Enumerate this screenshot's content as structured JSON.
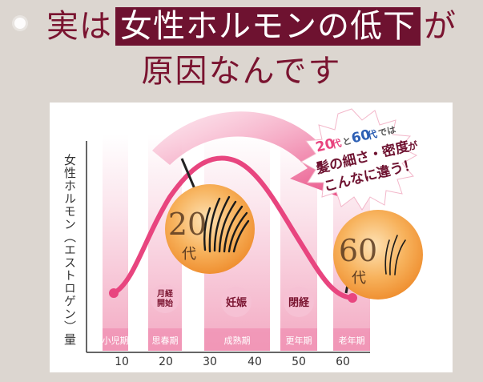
{
  "headline": {
    "line1_before": "実は",
    "line1_highlight": "女性ホルモンの低下",
    "line1_after": "が",
    "line2": "原因なんです"
  },
  "chart": {
    "ylabel": "女性ホルモン（エストロゲン）量",
    "periods": [
      "小児期",
      "思春期",
      "成熟期",
      "更年期",
      "老年期"
    ],
    "ticks": [
      "10",
      "20",
      "30",
      "40",
      "50",
      "60"
    ],
    "events": [
      "月経\n開始",
      "妊娠",
      "閉経"
    ],
    "burst": {
      "line1_a": "20",
      "line1_b": "代",
      "line1_c": "と",
      "line1_d": "60",
      "line1_e": "代",
      "line1_f": "では",
      "line2": "髪の細さ・密度",
      "line2_suffix": "が",
      "line3": "こんなに違う！"
    },
    "circle20": {
      "num": "20",
      "unit": "代"
    },
    "circle60": {
      "num": "60",
      "unit": "代"
    }
  },
  "colors": {
    "accent": "#6e1230",
    "curve": "#e8457f",
    "band": "#f7c9d8",
    "orange": "#f39a3a"
  }
}
